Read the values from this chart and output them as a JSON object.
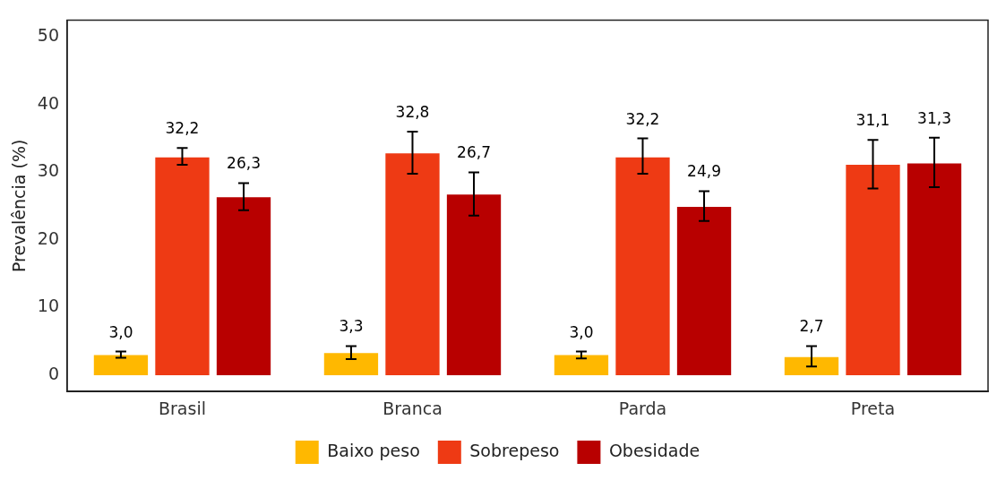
{
  "chart_data": {
    "type": "bar",
    "ylabel": "Prevalência (%)",
    "categories": [
      "Brasil",
      "Branca",
      "Parda",
      "Preta"
    ],
    "ylim": [
      -2.4,
      52.5
    ],
    "yticks": [
      0,
      10,
      20,
      30,
      40,
      50
    ],
    "grid": false,
    "legend": "bottom",
    "series": [
      {
        "name": "Baixo peso",
        "color": "#ffb800",
        "values": [
          3.0,
          3.3,
          3.0,
          2.7
        ],
        "value_labels": [
          "3,0",
          "3,3",
          "3,0",
          "2,7"
        ],
        "errors": [
          [
            2.6,
            3.5
          ],
          [
            2.4,
            4.3
          ],
          [
            2.5,
            3.5
          ],
          [
            1.3,
            4.3
          ]
        ]
      },
      {
        "name": "Sobrepeso",
        "color": "#ee3a14",
        "values": [
          32.2,
          32.8,
          32.2,
          31.1
        ],
        "value_labels": [
          "32,2",
          "32,8",
          "32,2",
          "31,1"
        ],
        "errors": [
          [
            31.1,
            33.6
          ],
          [
            29.8,
            36.0
          ],
          [
            29.8,
            35.0
          ],
          [
            27.6,
            34.8
          ]
        ]
      },
      {
        "name": "Obesidade",
        "color": "#b80000",
        "values": [
          26.3,
          26.7,
          24.9,
          31.3
        ],
        "value_labels": [
          "26,3",
          "26,7",
          "24,9",
          "31,3"
        ],
        "errors": [
          [
            24.4,
            28.4
          ],
          [
            23.6,
            30.0
          ],
          [
            22.8,
            27.2
          ],
          [
            27.8,
            35.1
          ]
        ]
      }
    ]
  }
}
